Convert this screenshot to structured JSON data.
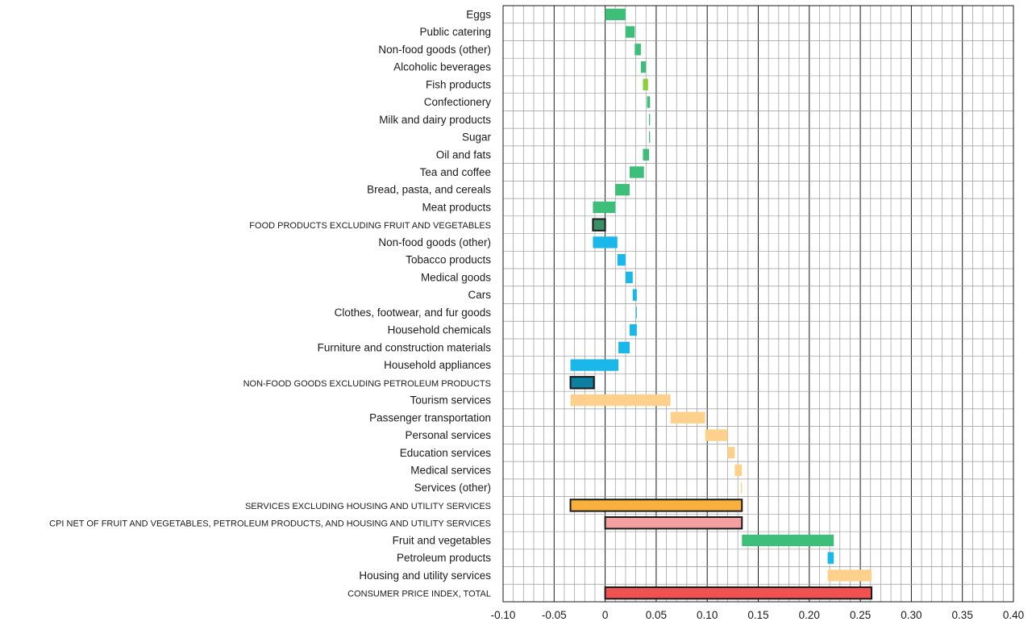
{
  "chart_data": {
    "type": "bar",
    "subtype": "waterfall-horizontal",
    "xlim": [
      -0.1,
      0.4
    ],
    "xticks": [
      -0.1,
      -0.05,
      0,
      0.05,
      0.1,
      0.15,
      0.2,
      0.25,
      0.3,
      0.35,
      0.4
    ],
    "xtick_labels": [
      "-0.10",
      "-0.05",
      "0",
      "0.05",
      "0.10",
      "0.15",
      "0.20",
      "0.25",
      "0.30",
      "0.35",
      "0.40"
    ],
    "grid": true,
    "colors": {
      "food": "#3dbf7a",
      "fish": "#8ccf3c",
      "nonfood": "#1ab7ea",
      "nonfood_total": "#0f7fa0",
      "services": "#fdd08c",
      "services_total": "#f9b03d",
      "core_total": "#f5a0a0",
      "cpi_total": "#f05252",
      "food_total": "#3a8f67",
      "outline": "#1a1a1a"
    },
    "bars": [
      {
        "label": "Eggs",
        "start": 0.0,
        "end": 0.02,
        "color_key": "food",
        "aggregate": false
      },
      {
        "label": "Public catering",
        "start": 0.02,
        "end": 0.029,
        "color_key": "food",
        "aggregate": false
      },
      {
        "label": "Non-food goods (other)",
        "start": 0.029,
        "end": 0.035,
        "color_key": "food",
        "aggregate": false
      },
      {
        "label": "Alcoholic beverages",
        "start": 0.035,
        "end": 0.04,
        "color_key": "food",
        "aggregate": false
      },
      {
        "label": "Fish products",
        "start": 0.037,
        "end": 0.042,
        "color_key": "fish",
        "aggregate": false
      },
      {
        "label": "Confectionery",
        "start": 0.041,
        "end": 0.044,
        "color_key": "food",
        "aggregate": false
      },
      {
        "label": "Milk and dairy products",
        "start": 0.043,
        "end": 0.044,
        "color_key": "food",
        "aggregate": false
      },
      {
        "label": "Sugar",
        "start": 0.043,
        "end": 0.044,
        "color_key": "food",
        "aggregate": false
      },
      {
        "label": "Oil and fats",
        "start": 0.037,
        "end": 0.043,
        "color_key": "food",
        "aggregate": false
      },
      {
        "label": "Tea and coffee",
        "start": 0.024,
        "end": 0.038,
        "color_key": "food",
        "aggregate": false
      },
      {
        "label": "Bread, pasta, and cereals",
        "start": 0.01,
        "end": 0.024,
        "color_key": "food",
        "aggregate": false
      },
      {
        "label": "Meat products",
        "start": -0.012,
        "end": 0.01,
        "color_key": "food",
        "aggregate": false
      },
      {
        "label": "FOOD PRODUCTS EXCLUDING FRUIT AND VEGETABLES",
        "start": -0.012,
        "end": 0.0,
        "color_key": "food_total",
        "aggregate": true
      },
      {
        "label": "Non-food goods (other)",
        "start": -0.012,
        "end": 0.012,
        "color_key": "nonfood",
        "aggregate": false
      },
      {
        "label": "Tobacco products",
        "start": 0.012,
        "end": 0.02,
        "color_key": "nonfood",
        "aggregate": false
      },
      {
        "label": "Medical goods",
        "start": 0.02,
        "end": 0.027,
        "color_key": "nonfood",
        "aggregate": false
      },
      {
        "label": "Cars",
        "start": 0.027,
        "end": 0.031,
        "color_key": "nonfood",
        "aggregate": false
      },
      {
        "label": "Clothes, footwear, and fur goods",
        "start": 0.03,
        "end": 0.031,
        "color_key": "nonfood",
        "aggregate": false
      },
      {
        "label": "Household chemicals",
        "start": 0.024,
        "end": 0.031,
        "color_key": "nonfood",
        "aggregate": false
      },
      {
        "label": "Furniture and construction materials",
        "start": 0.013,
        "end": 0.024,
        "color_key": "nonfood",
        "aggregate": false
      },
      {
        "label": "Household appliances",
        "start": -0.034,
        "end": 0.013,
        "color_key": "nonfood",
        "aggregate": false
      },
      {
        "label": "NON-FOOD GOODS EXCLUDING PETROLEUM PRODUCTS",
        "start": -0.034,
        "end": -0.011,
        "color_key": "nonfood_total",
        "aggregate": true
      },
      {
        "label": "Tourism services",
        "start": -0.034,
        "end": 0.064,
        "color_key": "services",
        "aggregate": false
      },
      {
        "label": "Passenger transportation",
        "start": 0.064,
        "end": 0.098,
        "color_key": "services",
        "aggregate": false
      },
      {
        "label": "Personal services",
        "start": 0.098,
        "end": 0.12,
        "color_key": "services",
        "aggregate": false
      },
      {
        "label": "Education services",
        "start": 0.12,
        "end": 0.127,
        "color_key": "services",
        "aggregate": false
      },
      {
        "label": "Medical services",
        "start": 0.127,
        "end": 0.134,
        "color_key": "services",
        "aggregate": false
      },
      {
        "label": "Services (other)",
        "start": 0.133,
        "end": 0.134,
        "color_key": "services",
        "aggregate": false
      },
      {
        "label": "SERVICES EXCLUDING HOUSING AND UTILITY SERVICES",
        "start": -0.034,
        "end": 0.134,
        "color_key": "services_total",
        "aggregate": true
      },
      {
        "label": "CPI NET OF FRUIT AND VEGETABLES, PETROLEUM PRODUCTS, AND HOUSING AND UTILITY SERVICES",
        "start": 0.0,
        "end": 0.134,
        "color_key": "core_total",
        "aggregate": true
      },
      {
        "label": "Fruit and vegetables",
        "start": 0.134,
        "end": 0.224,
        "color_key": "food",
        "aggregate": false
      },
      {
        "label": "Petroleum products",
        "start": 0.218,
        "end": 0.224,
        "color_key": "nonfood",
        "aggregate": false
      },
      {
        "label": "Housing and utility services",
        "start": 0.218,
        "end": 0.261,
        "color_key": "services",
        "aggregate": false
      },
      {
        "label": "CONSUMER PRICE INDEX, TOTAL",
        "start": 0.0,
        "end": 0.261,
        "color_key": "cpi_total",
        "aggregate": true
      }
    ]
  }
}
